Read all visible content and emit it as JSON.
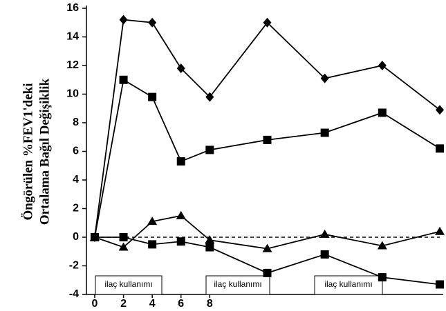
{
  "chart_data": {
    "type": "line",
    "ylabel": [
      "Öngörülen %FEV1'deki",
      "Ortalama Bağıl Değişiklik"
    ],
    "x": [
      0,
      2,
      4,
      6,
      8,
      12,
      16,
      20,
      24
    ],
    "xlim": [
      0,
      24
    ],
    "xticks": [
      0,
      2,
      4,
      6,
      8
    ],
    "ylim": [
      -4,
      16
    ],
    "yticks": [
      -4,
      -2,
      0,
      2,
      4,
      6,
      8,
      10,
      12,
      14,
      16
    ],
    "reference_line": 0,
    "annotations": [
      "ilaç kullanımı",
      "ilaç kullanımı",
      "ilaç kullanımı"
    ],
    "series": [
      {
        "marker": "diamond",
        "color": "#000000",
        "values": [
          0,
          15.2,
          15.0,
          11.8,
          9.8,
          15.0,
          11.1,
          12.0,
          8.9
        ]
      },
      {
        "marker": "square",
        "color": "#000000",
        "values": [
          0,
          11.0,
          9.8,
          5.3,
          6.1,
          6.8,
          7.3,
          8.7,
          6.2
        ]
      },
      {
        "marker": "triangle",
        "color": "#000000",
        "values": [
          0,
          -0.7,
          1.1,
          1.5,
          -0.2,
          -0.8,
          0.2,
          -0.6,
          0.4
        ]
      },
      {
        "marker": "square",
        "color": "#000000",
        "values": [
          0,
          0,
          -0.5,
          -0.3,
          -0.7,
          -2.5,
          -1.2,
          -2.8,
          -3.3
        ]
      }
    ]
  }
}
